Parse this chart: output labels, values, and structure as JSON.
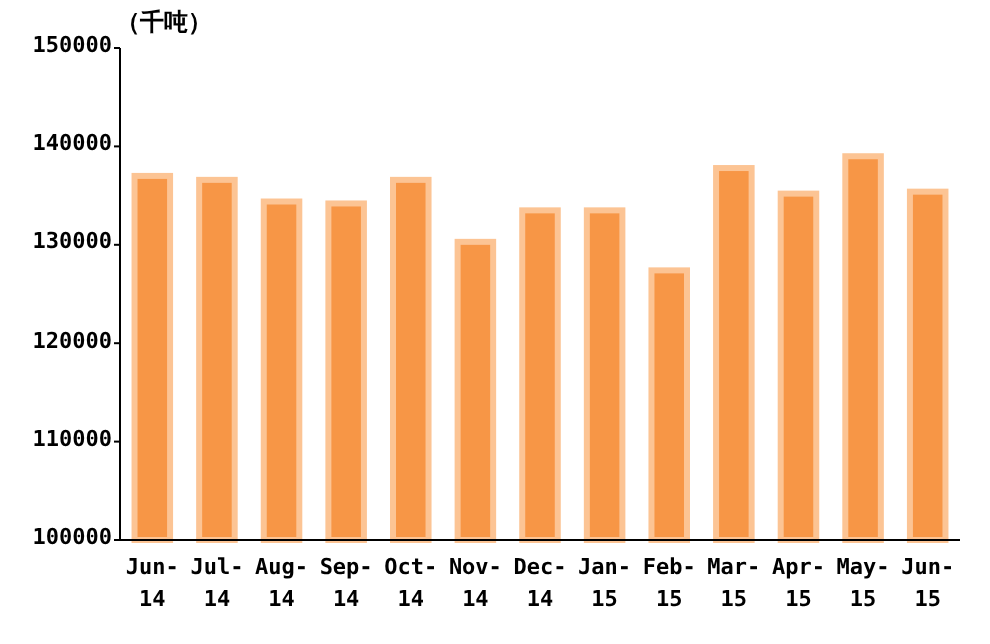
{
  "chart_data": {
    "type": "bar",
    "ylabel": "（千吨）",
    "categories": [
      "Jun-14",
      "Jul-14",
      "Aug-14",
      "Sep-14",
      "Oct-14",
      "Nov-14",
      "Dec-14",
      "Jan-15",
      "Feb-15",
      "Mar-15",
      "Apr-15",
      "May-15",
      "Jun-15"
    ],
    "values": [
      137000,
      136600,
      134400,
      134200,
      136600,
      130300,
      133500,
      133500,
      127400,
      137800,
      135200,
      139000,
      135400
    ],
    "color": "#f79646",
    "ylim": [
      100000,
      150000
    ],
    "yticks": [
      100000,
      110000,
      120000,
      130000,
      140000,
      150000
    ]
  }
}
